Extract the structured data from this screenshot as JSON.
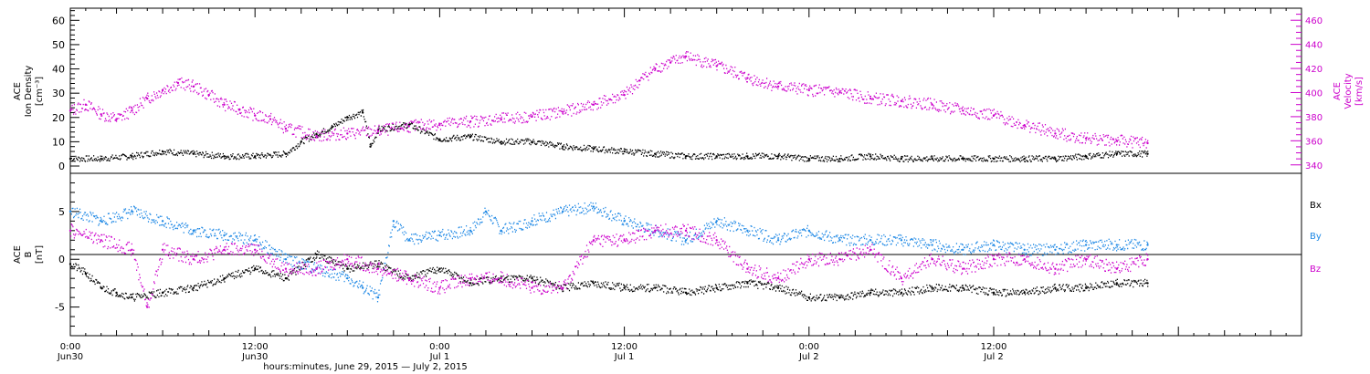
{
  "chart_data": [
    {
      "type": "scatter",
      "panel": "top",
      "title": "",
      "ylabel_left": [
        "ACE",
        "Ion Density",
        "[cm⁻³]"
      ],
      "ylabel_right": [
        "ACE",
        "Velocity",
        "[km/s]"
      ],
      "xlim_hours": [
        0,
        72
      ],
      "ylim_left": [
        -3,
        65
      ],
      "ylim_right": [
        333,
        470
      ],
      "left_ticks": [
        "0",
        "10",
        "20",
        "30",
        "40",
        "50",
        "60"
      ],
      "right_ticks": [
        "340",
        "360",
        "380",
        "400",
        "420",
        "440",
        "460"
      ],
      "series": [
        {
          "name": "Ion Density",
          "axis": "left",
          "color": "#000000",
          "x": [
            0,
            2,
            4,
            6,
            8,
            10,
            12,
            14,
            15,
            16,
            17,
            18,
            19,
            19.5,
            20,
            22,
            24,
            26,
            28,
            30,
            32,
            34,
            36,
            38,
            40,
            42,
            44,
            46,
            48,
            50,
            52,
            54,
            56,
            58,
            60,
            62,
            64,
            66,
            68,
            70
          ],
          "y": [
            3,
            3,
            4,
            6,
            5,
            4,
            4,
            5,
            10,
            13,
            16,
            20,
            22,
            8,
            15,
            17,
            11,
            12,
            10,
            10,
            8,
            7,
            6,
            5,
            4,
            4,
            4,
            4,
            3,
            3,
            4,
            3,
            3,
            3,
            3,
            3,
            3,
            4,
            5,
            5
          ]
        },
        {
          "name": "Velocity",
          "axis": "right",
          "color": "#cc00cc",
          "x": [
            0,
            1,
            2,
            3,
            4,
            5,
            6,
            7,
            8,
            9,
            10,
            11,
            12,
            13,
            14,
            16,
            18,
            20,
            22,
            24,
            26,
            28,
            30,
            32,
            34,
            36,
            37,
            38,
            39,
            40,
            42,
            44,
            46,
            48,
            50,
            52,
            54,
            56,
            58,
            60,
            62,
            64,
            66,
            68,
            70
          ],
          "y": [
            385,
            390,
            382,
            378,
            385,
            395,
            402,
            408,
            405,
            398,
            390,
            386,
            381,
            378,
            370,
            364,
            366,
            368,
            372,
            374,
            376,
            378,
            380,
            384,
            390,
            398,
            410,
            420,
            425,
            430,
            422,
            412,
            405,
            402,
            400,
            395,
            393,
            390,
            385,
            381,
            373,
            366,
            362,
            360,
            358
          ]
        }
      ]
    },
    {
      "type": "scatter",
      "panel": "bottom",
      "title": "",
      "ylabel_left": [
        "ACE",
        "B",
        "[nT]"
      ],
      "xlim_hours": [
        0,
        72
      ],
      "ylim": [
        -8,
        9
      ],
      "ticks": [
        "-5",
        "0",
        "5"
      ],
      "legend": [
        "Bx",
        "By",
        "Bz"
      ],
      "legend_position": "right",
      "series": [
        {
          "name": "Bx",
          "color": "#000000",
          "x": [
            0,
            1,
            2,
            3,
            4,
            6,
            8,
            10,
            12,
            14,
            16,
            18,
            20,
            22,
            24,
            26,
            28,
            30,
            32,
            34,
            36,
            38,
            40,
            42,
            44,
            46,
            48,
            50,
            52,
            54,
            56,
            58,
            60,
            62,
            64,
            66,
            68,
            70
          ],
          "y": [
            -0.5,
            -1.5,
            -3,
            -3.5,
            -4,
            -3.5,
            -3,
            -2,
            -1,
            -2,
            0.5,
            -1,
            -0.5,
            -2,
            -1,
            -2.5,
            -2,
            -2,
            -3,
            -2.5,
            -3,
            -3,
            -3.5,
            -3,
            -2.5,
            -3,
            -4,
            -4,
            -3.5,
            -3.5,
            -3,
            -3,
            -3.5,
            -3.5,
            -3,
            -3,
            -2.5,
            -2.5
          ]
        },
        {
          "name": "By",
          "color": "#1e88e5",
          "x": [
            0,
            2,
            4,
            6,
            8,
            10,
            12,
            14,
            16,
            18,
            19,
            20,
            21,
            22,
            24,
            26,
            27,
            28,
            30,
            32,
            34,
            36,
            38,
            40,
            42,
            44,
            46,
            48,
            50,
            52,
            54,
            56,
            58,
            60,
            62,
            64,
            66,
            68,
            70
          ],
          "y": [
            5,
            4,
            5,
            4,
            3,
            2.5,
            2,
            0,
            -1,
            -2,
            -3,
            -4,
            4,
            2,
            2.5,
            3,
            5,
            3,
            4,
            5,
            5.5,
            4,
            3,
            2,
            4,
            3,
            2,
            3,
            2,
            2,
            2,
            1.5,
            1,
            1.5,
            1,
            1,
            1.5,
            1.5,
            1.5
          ]
        },
        {
          "name": "Bz",
          "color": "#cc00cc",
          "x": [
            0,
            2,
            4,
            5,
            6,
            8,
            10,
            12,
            14,
            16,
            18,
            20,
            22,
            24,
            26,
            28,
            30,
            32,
            34,
            36,
            38,
            40,
            42,
            44,
            46,
            48,
            50,
            52,
            54,
            56,
            58,
            60,
            62,
            64,
            66,
            68,
            70
          ],
          "y": [
            3,
            2,
            1,
            -5,
            1,
            0,
            1,
            1,
            -1,
            -1,
            0,
            -1,
            -2,
            -3,
            -2,
            -2,
            -3,
            -3,
            2,
            2,
            3,
            3,
            2,
            -1,
            -2,
            0,
            0,
            1,
            -2,
            0,
            -1,
            0,
            0,
            -1,
            0,
            -1,
            0
          ]
        }
      ]
    }
  ],
  "axis": {
    "time_labels": [
      "0:00",
      "12:00",
      "0:00",
      "12:00",
      "0:00",
      "12:00"
    ],
    "date_labels": [
      "Jun30",
      "Jun30",
      "Jul 1",
      "Jul 1",
      "Jul 2",
      "Jul 2"
    ],
    "tick_hours": [
      0,
      12,
      24,
      36,
      48,
      60
    ],
    "xlabel": "hours:minutes, June 29, 2015 — July  2, 2015"
  },
  "colors": {
    "density": "#000000",
    "velocity": "#cc00cc",
    "bx": "#000000",
    "by": "#1e88e5",
    "bz": "#cc00cc"
  }
}
